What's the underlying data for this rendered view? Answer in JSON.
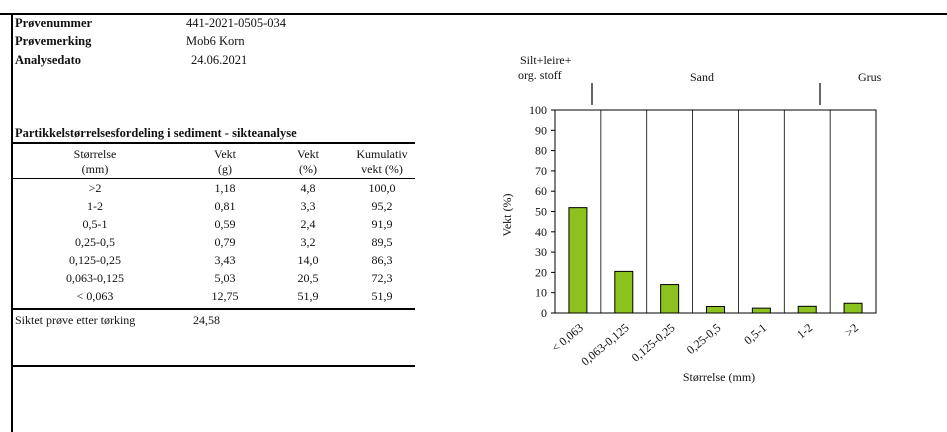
{
  "header": {
    "sample_no_label": "Prøvenummer",
    "sample_no_value": "441-2021-0505-034",
    "sample_mark_label": "Prøvemerking",
    "sample_mark_value": "Mob6 Korn",
    "date_label": "Analysedato",
    "date_value": "24.06.2021"
  },
  "table": {
    "title": "Partikkelstørrelsesfordeling i sediment - sikteanalyse",
    "columns": [
      {
        "line1": "Størrelse",
        "line2": "(mm)"
      },
      {
        "line1": "Vekt",
        "line2": "(g)"
      },
      {
        "line1": "Vekt",
        "line2": "(%)"
      },
      {
        "line1": "Kumulativ",
        "line2": "vekt (%)"
      }
    ],
    "rows": [
      {
        "size": ">2",
        "weight_g": "1,18",
        "weight_pct": "4,8",
        "cumulative": "100,0"
      },
      {
        "size": "1-2",
        "weight_g": "0,81",
        "weight_pct": "3,3",
        "cumulative": "95,2"
      },
      {
        "size": "0,5-1",
        "weight_g": "0,59",
        "weight_pct": "2,4",
        "cumulative": "91,9"
      },
      {
        "size": "0,25-0,5",
        "weight_g": "0,79",
        "weight_pct": "3,2",
        "cumulative": "89,5"
      },
      {
        "size": "0,125-0,25",
        "weight_g": "3,43",
        "weight_pct": "14,0",
        "cumulative": "86,3"
      },
      {
        "size": "0,063-0,125",
        "weight_g": "5,03",
        "weight_pct": "20,5",
        "cumulative": "72,3"
      },
      {
        "size": "< 0,063",
        "weight_g": "12,75",
        "weight_pct": "51,9",
        "cumulative": "51,9"
      }
    ],
    "footer_label": "Siktet prøve etter tørking",
    "footer_value": "24,58"
  },
  "chart_data": {
    "type": "bar",
    "categories": [
      "< 0,063",
      "0,063-0,125",
      "0,125-0,25",
      "0,25-0,5",
      "0,5-1",
      "1-2",
      ">2"
    ],
    "values": [
      51.9,
      20.5,
      14.0,
      3.2,
      2.4,
      3.3,
      4.8
    ],
    "xlabel": "Størrelse (mm)",
    "ylabel": "Vekt (%)",
    "ylim": [
      0,
      100
    ],
    "yticks": [
      "0",
      "10",
      "20",
      "30",
      "40",
      "50",
      "60",
      "70",
      "80",
      "90",
      "100"
    ],
    "bar_color": "#8cc21e",
    "group_labels": {
      "silt_line1": "Silt+leire+",
      "silt_line2": "org. stoff",
      "sand": "Sand",
      "grus": "Grus"
    }
  }
}
